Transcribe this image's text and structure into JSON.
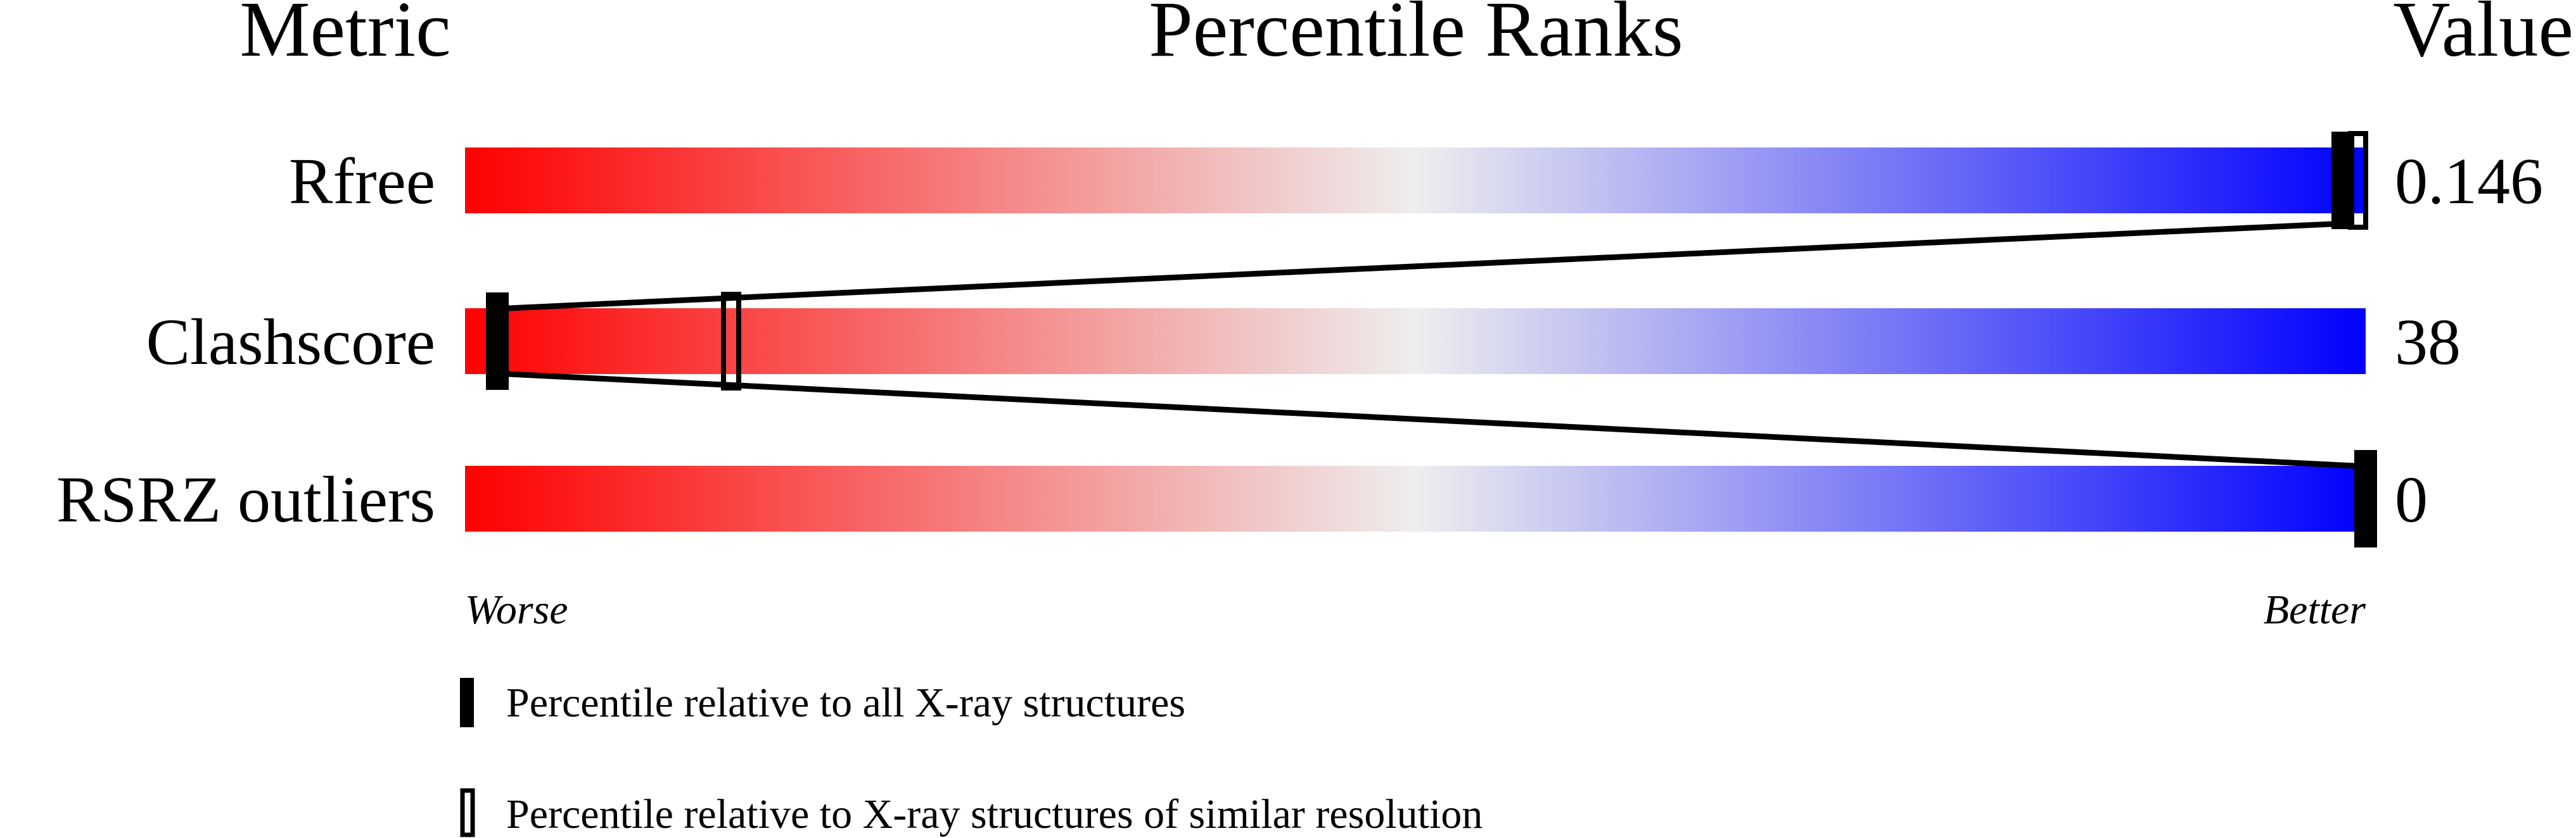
{
  "chart_data": {
    "type": "table",
    "headers": {
      "metric": "Metric",
      "ranks": "Percentile Ranks",
      "value": "Value"
    },
    "xlim": [
      0,
      100
    ],
    "scale_labels": {
      "left": "Worse",
      "right": "Better"
    },
    "gradient_colors": {
      "worse": "#ff0000",
      "middle": "#eeeeee",
      "better": "#0000ff"
    },
    "rows": [
      {
        "metric": "Rfree",
        "value": "0.146",
        "percentile_all": 98.8,
        "percentile_similar": 99.6
      },
      {
        "metric": "Clashscore",
        "value": "38",
        "percentile_all": 1.7,
        "percentile_similar": 14
      },
      {
        "metric": "RSRZ outliers",
        "value": "0",
        "percentile_all": 100,
        "percentile_similar": null
      }
    ],
    "legend": [
      {
        "marker": "filled",
        "label": "Percentile relative to all X-ray structures"
      },
      {
        "marker": "open",
        "label": "Percentile relative to X-ray structures of similar resolution"
      }
    ]
  }
}
